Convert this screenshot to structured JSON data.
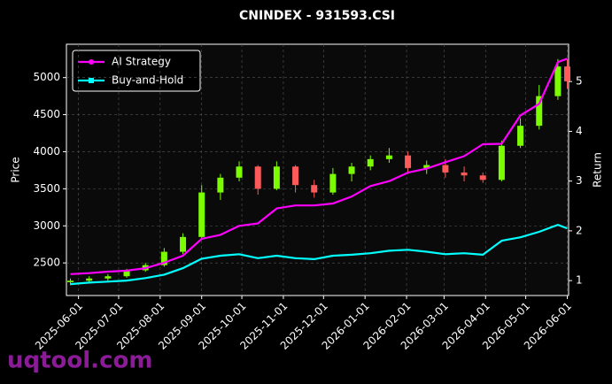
{
  "chart_data": {
    "type": "candlestick",
    "title": "CNINDEX - 931593.CSI",
    "ylabel": "Price",
    "y2label": "Return",
    "watermark": "uqtool.com",
    "x": [
      "2025-05-26",
      "2025-06-09",
      "2025-06-23",
      "2025-07-07",
      "2025-07-21",
      "2025-08-04",
      "2025-08-18",
      "2025-09-01",
      "2025-09-15",
      "2025-09-29",
      "2025-10-13",
      "2025-10-27",
      "2025-11-10",
      "2025-11-24",
      "2025-12-08",
      "2025-12-22",
      "2026-01-05",
      "2026-01-19",
      "2026-02-02",
      "2026-02-16",
      "2026-03-02",
      "2026-03-16",
      "2026-03-30",
      "2026-04-13",
      "2026-04-27",
      "2026-05-11",
      "2026-05-25",
      "2026-06-01"
    ],
    "open": [
      2240,
      2260,
      2290,
      2320,
      2400,
      2470,
      2650,
      2850,
      3450,
      3650,
      3800,
      3500,
      3800,
      3550,
      3450,
      3700,
      3800,
      3900,
      3950,
      3780,
      3820,
      3720,
      3680,
      3620,
      4080,
      4350,
      4750,
      5150
    ],
    "high": [
      2290,
      2320,
      2350,
      2420,
      2500,
      2700,
      2900,
      3550,
      3700,
      3870,
      3820,
      3870,
      3820,
      3620,
      3780,
      3850,
      3950,
      4050,
      4000,
      3880,
      3900,
      3800,
      3720,
      4150,
      4450,
      4900,
      5250,
      5250
    ],
    "low": [
      2200,
      2230,
      2260,
      2300,
      2380,
      2450,
      2620,
      2820,
      3350,
      3600,
      3420,
      3480,
      3450,
      3380,
      3420,
      3600,
      3750,
      3850,
      3700,
      3700,
      3650,
      3600,
      3580,
      3600,
      4050,
      4300,
      4700,
      4850
    ],
    "close": [
      2260,
      2290,
      2320,
      2400,
      2470,
      2650,
      2850,
      3450,
      3650,
      3800,
      3500,
      3800,
      3550,
      3450,
      3700,
      3800,
      3900,
      3950,
      3780,
      3820,
      3720,
      3680,
      3620,
      4080,
      4350,
      4750,
      5150,
      4950
    ],
    "up_color": "#7cfc00",
    "down_color": "#ff5a5a",
    "series": [
      {
        "name": "AI Strategy",
        "color": "#ff00ff",
        "axis": "y2",
        "marker": "circle",
        "values": [
          1.13,
          1.15,
          1.18,
          1.2,
          1.25,
          1.36,
          1.5,
          1.84,
          1.92,
          2.1,
          2.15,
          2.45,
          2.51,
          2.51,
          2.55,
          2.69,
          2.9,
          3.0,
          3.17,
          3.25,
          3.38,
          3.5,
          3.74,
          3.75,
          4.32,
          4.55,
          5.39,
          5.46
        ]
      },
      {
        "name": "Buy-and-Hold",
        "color": "#00ffff",
        "axis": "y2",
        "marker": "square",
        "values": [
          0.93,
          0.96,
          0.98,
          1.0,
          1.05,
          1.12,
          1.25,
          1.44,
          1.5,
          1.53,
          1.45,
          1.5,
          1.45,
          1.43,
          1.5,
          1.52,
          1.55,
          1.6,
          1.62,
          1.58,
          1.53,
          1.55,
          1.52,
          1.8,
          1.87,
          1.98,
          2.12,
          2.05
        ]
      }
    ],
    "xlim": [
      "2025-05-23",
      "2026-06-02"
    ],
    "xticks": [
      "2025-06-01",
      "2025-07-01",
      "2025-08-01",
      "2025-09-01",
      "2025-10-01",
      "2025-11-01",
      "2025-12-01",
      "2026-01-01",
      "2026-02-01",
      "2026-03-01",
      "2026-04-01",
      "2026-05-01",
      "2026-06-01"
    ],
    "ylim": [
      2060,
      5450
    ],
    "yticks": [
      2500,
      3000,
      3500,
      4000,
      4500,
      5000
    ],
    "y2lim": [
      0.7,
      5.75
    ],
    "y2ticks": [
      1,
      2,
      3,
      4,
      5
    ],
    "grid": true,
    "legend": "upper left"
  }
}
